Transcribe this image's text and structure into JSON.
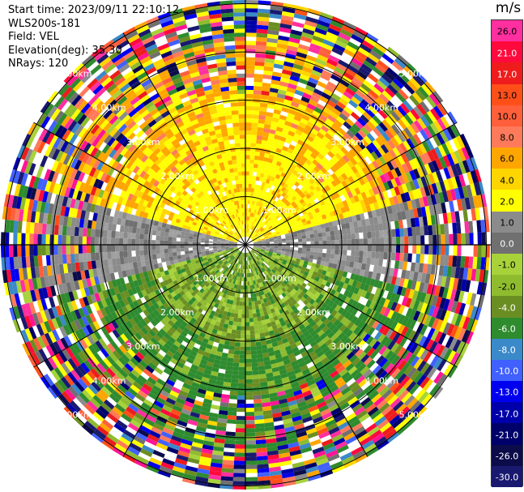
{
  "header": {
    "start_time": "Start time: 2023/09/11 22:10:12",
    "instrument": "WLS200s-181",
    "field": "Field: VEL",
    "elevation": "Elevation(deg): 35.30",
    "nrays": "NRays: 120"
  },
  "range_rings": [
    {
      "km": 1,
      "label": "1.00km"
    },
    {
      "km": 2,
      "label": "2.00km"
    },
    {
      "km": 3,
      "label": "3.00km"
    },
    {
      "km": 4,
      "label": "4.00km"
    },
    {
      "km": 5,
      "label": "5.00km"
    }
  ],
  "colorbar": {
    "unit": "m/s",
    "levels": [
      {
        "label": "26.0",
        "color": "#ff2f9f"
      },
      {
        "label": "21.0",
        "color": "#ff0a3c"
      },
      {
        "label": "17.0",
        "color": "#ee1c1c"
      },
      {
        "label": "13.0",
        "color": "#ff4f19"
      },
      {
        "label": "10.0",
        "color": "#ff5f3a"
      },
      {
        "label": "8.0",
        "color": "#ff7a5a"
      },
      {
        "label": "6.0",
        "color": "#ffa500"
      },
      {
        "label": "4.0",
        "color": "#ffd500"
      },
      {
        "label": "2.0",
        "color": "#ffff00"
      },
      {
        "label": "1.0",
        "color": "#8b8b8b"
      },
      {
        "label": "0.0",
        "color": "#707070"
      },
      {
        "label": "-1.0",
        "color": "#a8d23a"
      },
      {
        "label": "-2.0",
        "color": "#8fbc2f"
      },
      {
        "label": "-4.0",
        "color": "#6b8e23"
      },
      {
        "label": "-6.0",
        "color": "#2e8b2e"
      },
      {
        "label": "-8.0",
        "color": "#3a89c9"
      },
      {
        "label": "-10.0",
        "color": "#4060ff"
      },
      {
        "label": "-13.0",
        "color": "#0000ee"
      },
      {
        "label": "-17.0",
        "color": "#0000aa"
      },
      {
        "label": "-21.0",
        "color": "#00006a"
      },
      {
        "label": "-26.0",
        "color": "#0c0c4a"
      },
      {
        "label": "-30.0",
        "color": "#191970"
      }
    ]
  }
}
